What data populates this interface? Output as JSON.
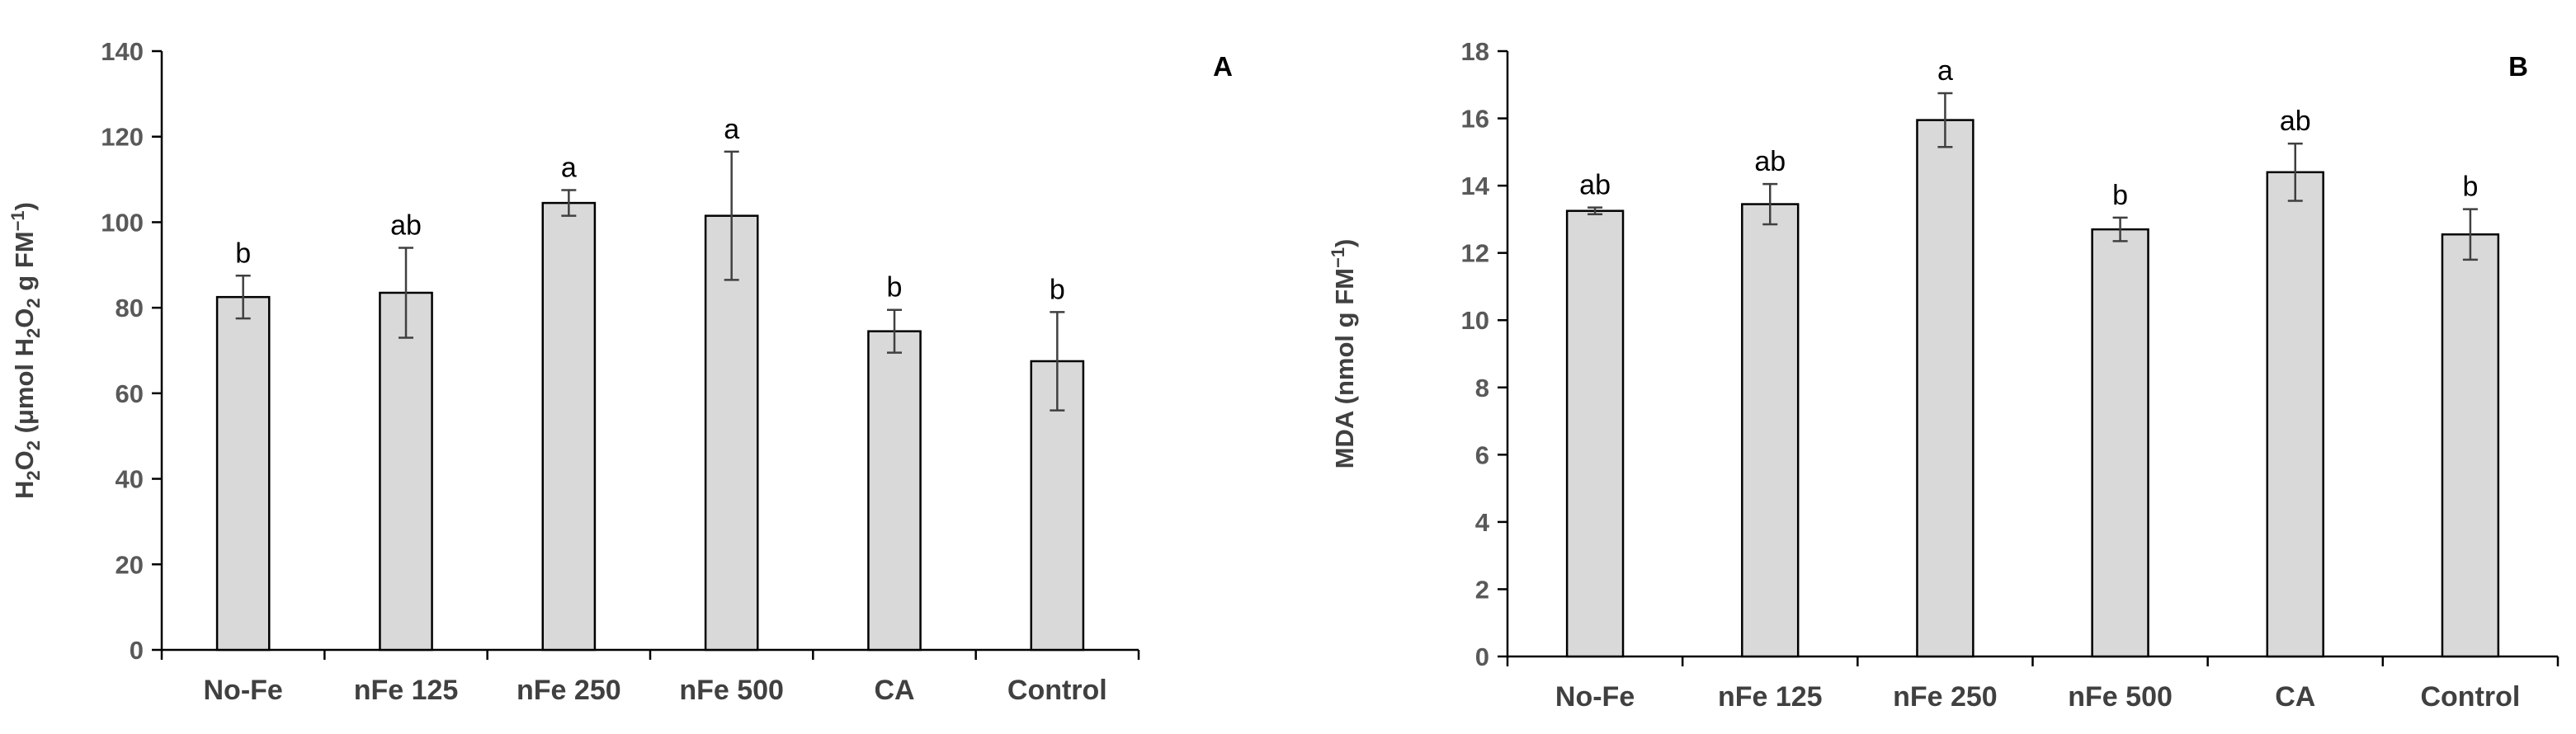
{
  "chart_data": [
    {
      "type": "bar",
      "panel_label": "A",
      "categories": [
        "No-Fe",
        "nFe 125",
        "nFe 250",
        "nFe 500",
        "CA",
        "Control"
      ],
      "values": [
        82.5,
        83.5,
        104.5,
        101.5,
        74.5,
        67.5
      ],
      "errors": [
        5,
        10.5,
        3,
        15,
        5,
        11.5
      ],
      "significance": [
        "b",
        "ab",
        "a",
        "a",
        "b",
        "b"
      ],
      "ylabel_parts": [
        "H",
        "2",
        "O",
        "2",
        " (μmol H",
        "2",
        "O",
        "2",
        " g FM",
        "−1",
        ")"
      ],
      "ylim": [
        0,
        140
      ],
      "yticks": [
        0,
        20,
        40,
        60,
        80,
        100,
        120,
        140
      ]
    },
    {
      "type": "bar",
      "panel_label": "B",
      "categories": [
        "No-Fe",
        "nFe 125",
        "nFe 250",
        "nFe 500",
        "CA",
        "Control"
      ],
      "values": [
        13.25,
        13.45,
        15.95,
        12.7,
        14.4,
        12.55
      ],
      "errors": [
        0.1,
        0.6,
        0.8,
        0.35,
        0.85,
        0.75
      ],
      "significance": [
        "ab",
        "ab",
        "a",
        "b",
        "ab",
        "b"
      ],
      "ylabel_parts": [
        "MDA (nmol g FM",
        "−1",
        ")"
      ],
      "ylim": [
        0,
        18
      ],
      "yticks": [
        0,
        2,
        4,
        6,
        8,
        10,
        12,
        14,
        16,
        18
      ]
    }
  ]
}
